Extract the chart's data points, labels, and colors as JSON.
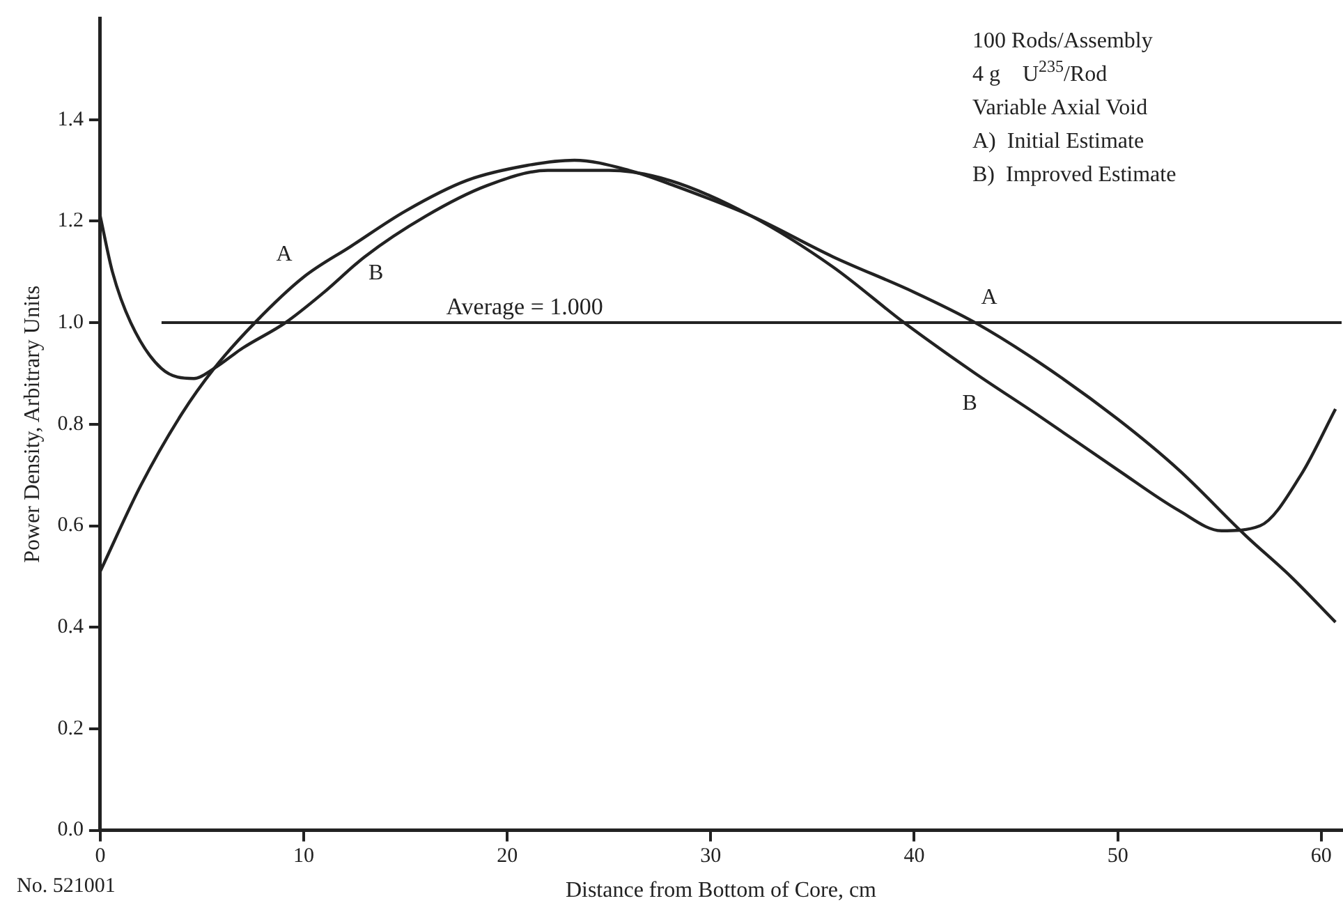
{
  "chart_data": {
    "type": "line",
    "xlabel": "Distance from Bottom of Core, cm",
    "ylabel": "Power Density, Arbitrary Units",
    "xlim": [
      0,
      61
    ],
    "xticks": [
      0,
      10,
      20,
      30,
      40,
      50,
      60
    ],
    "ylim": [
      0,
      1.6
    ],
    "yticks": [
      {
        "value": 0,
        "label": "0.0"
      },
      {
        "value": 0.2,
        "label": "0.2"
      },
      {
        "value": 0.4,
        "label": "0.4"
      },
      {
        "value": 0.6,
        "label": "0.6"
      },
      {
        "value": 0.8,
        "label": "0.8"
      },
      {
        "value": 1.0,
        "label": "1.0"
      },
      {
        "value": 1.2,
        "label": "1.2"
      },
      {
        "value": 1.4,
        "label": "1.4"
      }
    ],
    "grid": false,
    "legend": false,
    "marker": "none",
    "line_style": "solid",
    "series": [
      {
        "name": "A",
        "color": "#222222",
        "x": [
          0,
          2,
          4,
          5.6,
          7.6,
          10,
          12.3,
          15,
          18,
          21,
          23.3,
          26,
          28.2,
          32,
          36,
          40,
          43,
          46.2,
          50,
          53,
          56.3,
          58.5,
          60.7
        ],
        "values": [
          0.51,
          0.68,
          0.82,
          0.91,
          1.0,
          1.09,
          1.15,
          1.22,
          1.28,
          1.31,
          1.32,
          1.3,
          1.27,
          1.21,
          1.13,
          1.06,
          1.0,
          0.92,
          0.81,
          0.71,
          0.58,
          0.5,
          0.41
        ]
      },
      {
        "name": "B",
        "color": "#222222",
        "x": [
          0,
          0.6,
          1.5,
          3,
          4.6,
          5.6,
          7,
          9.1,
          11,
          13,
          16,
          19,
          22,
          25,
          28,
          32,
          36,
          39.5,
          43,
          46,
          50,
          53,
          55.1,
          57,
          59,
          60.7
        ],
        "values": [
          1.21,
          1.1,
          1.0,
          0.91,
          0.89,
          0.91,
          0.95,
          1.0,
          1.06,
          1.13,
          1.21,
          1.27,
          1.3,
          1.3,
          1.28,
          1.21,
          1.11,
          1.0,
          0.9,
          0.82,
          0.71,
          0.63,
          0.59,
          0.6,
          0.7,
          0.83
        ]
      }
    ],
    "ref_lines": [
      {
        "axis": "y",
        "value": 1.0,
        "label": "Average = 1.000",
        "color": "#222222"
      }
    ],
    "annotations": [
      "100 Rods/Assembly",
      "4 g    U$^{235}$/Rod",
      "Variable Axial Void",
      "A)  Initial Estimate",
      "B)  Improved Estimate",
      "No. 521001"
    ]
  }
}
